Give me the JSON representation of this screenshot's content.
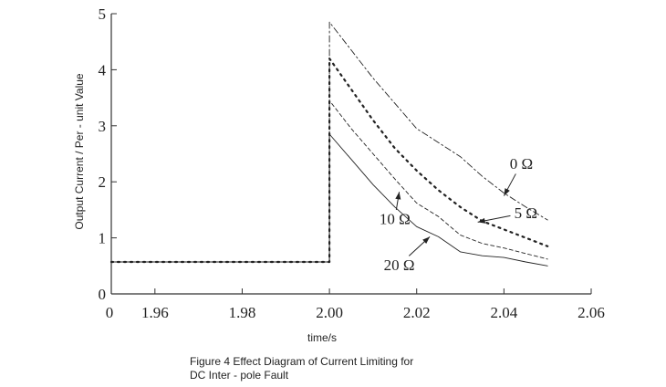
{
  "caption": {
    "line1": "Figure 4 Effect Diagram of Current Limiting for",
    "line2": "DC Inter - pole Fault"
  },
  "chart_data": {
    "type": "line",
    "xlabel": "time/s",
    "ylabel": "Output Current / Per - unit Value",
    "xlim": [
      1.95,
      2.06
    ],
    "ylim": [
      0,
      5
    ],
    "x_ticks": [
      "0",
      "1.96",
      "1.98",
      "2.00",
      "2.02",
      "2.04",
      "2.06"
    ],
    "x_tick_values": [
      1.95,
      1.96,
      1.98,
      2.0,
      2.02,
      2.04,
      2.06
    ],
    "y_ticks": [
      "0",
      "1",
      "2",
      "3",
      "4",
      "5"
    ],
    "y_tick_values": [
      0,
      1,
      2,
      3,
      4,
      5
    ],
    "grid": false,
    "legend": "inline annotations with arrows",
    "series": [
      {
        "name": "0 Ω",
        "style": "dashdot",
        "x": [
          1.95,
          2.0,
          2.0,
          2.005,
          2.01,
          2.015,
          2.02,
          2.025,
          2.03,
          2.035,
          2.04,
          2.045,
          2.05
        ],
        "y": [
          0.57,
          0.57,
          4.85,
          4.35,
          3.85,
          3.4,
          2.95,
          2.7,
          2.45,
          2.1,
          1.8,
          1.55,
          1.32
        ]
      },
      {
        "name": "5 Ω",
        "style": "dotted",
        "x": [
          1.95,
          2.0,
          2.0,
          2.005,
          2.01,
          2.015,
          2.02,
          2.025,
          2.03,
          2.035,
          2.04,
          2.045,
          2.05
        ],
        "y": [
          0.57,
          0.57,
          4.2,
          3.65,
          3.1,
          2.6,
          2.2,
          1.85,
          1.55,
          1.3,
          1.15,
          1.0,
          0.85
        ]
      },
      {
        "name": "10 Ω",
        "style": "dashed",
        "x": [
          1.95,
          2.0,
          2.0,
          2.005,
          2.01,
          2.015,
          2.02,
          2.025,
          2.03,
          2.035,
          2.04,
          2.045,
          2.05
        ],
        "y": [
          0.57,
          0.57,
          3.45,
          2.95,
          2.5,
          2.05,
          1.62,
          1.38,
          1.05,
          0.9,
          0.82,
          0.72,
          0.62
        ]
      },
      {
        "name": "20 Ω",
        "style": "solid",
        "x": [
          1.95,
          2.0,
          2.0,
          2.005,
          2.01,
          2.015,
          2.02,
          2.025,
          2.03,
          2.035,
          2.04,
          2.045,
          2.05
        ],
        "y": [
          0.57,
          0.57,
          2.85,
          2.4,
          1.95,
          1.55,
          1.2,
          1.02,
          0.75,
          0.68,
          0.65,
          0.57,
          0.5
        ]
      }
    ],
    "annotations": [
      {
        "text": "0 Ω",
        "series": "0 Ω",
        "arrow_to": [
          2.04,
          1.75
        ],
        "text_at": [
          2.044,
          2.23
        ]
      },
      {
        "text": "5 Ω",
        "series": "5 Ω",
        "arrow_to": [
          2.034,
          1.28
        ],
        "text_at": [
          2.045,
          1.35
        ]
      },
      {
        "text": "10 Ω",
        "series": "10 Ω",
        "arrow_to": [
          2.016,
          1.82
        ],
        "text_at": [
          2.015,
          1.25
        ]
      },
      {
        "text": "20 Ω",
        "series": "20 Ω",
        "arrow_to": [
          2.023,
          1.02
        ],
        "text_at": [
          2.016,
          0.42
        ]
      }
    ]
  }
}
